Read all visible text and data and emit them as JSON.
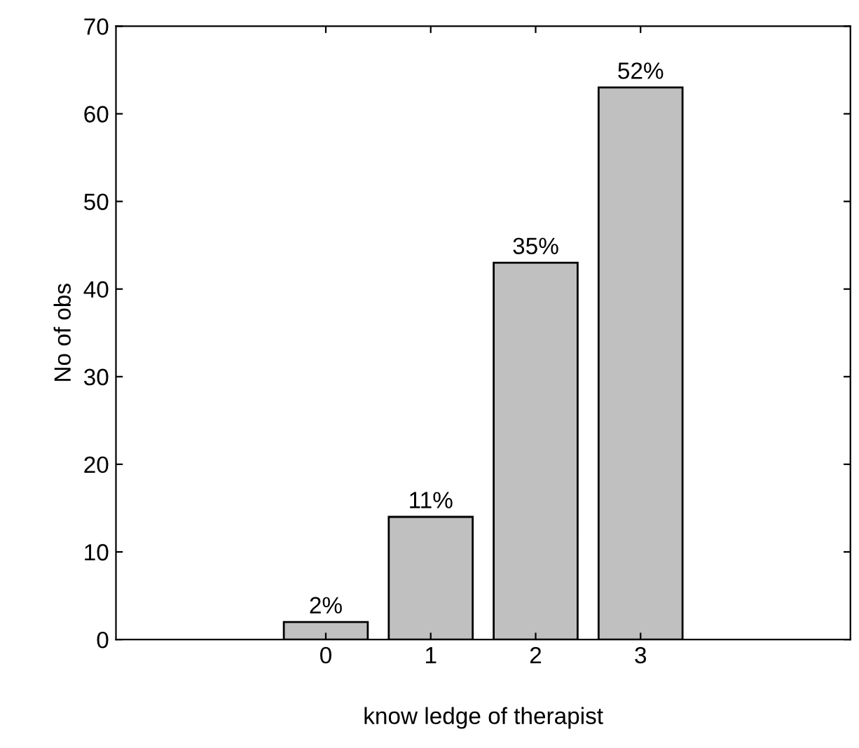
{
  "chart_data": {
    "type": "bar",
    "xlabel": "know ledge of therapist",
    "ylabel": "No of obs",
    "x": [
      0,
      1,
      2,
      3
    ],
    "values": [
      2,
      14,
      43,
      63
    ],
    "color": "#c0c0c0",
    "annotations": [
      {
        "text": "2%",
        "x": 0,
        "y": 2
      },
      {
        "text": "11%",
        "x": 1,
        "y": 14
      },
      {
        "text": "35%",
        "x": 2,
        "y": 43
      },
      {
        "text": "52%",
        "x": 3,
        "y": 63
      }
    ],
    "xlim": [
      -2,
      5
    ],
    "xticks": [
      0,
      1,
      2,
      3
    ],
    "ylim": [
      0,
      70
    ],
    "yticks": [
      0,
      10,
      20,
      30,
      40,
      50,
      60,
      70
    ],
    "grid": false
  }
}
